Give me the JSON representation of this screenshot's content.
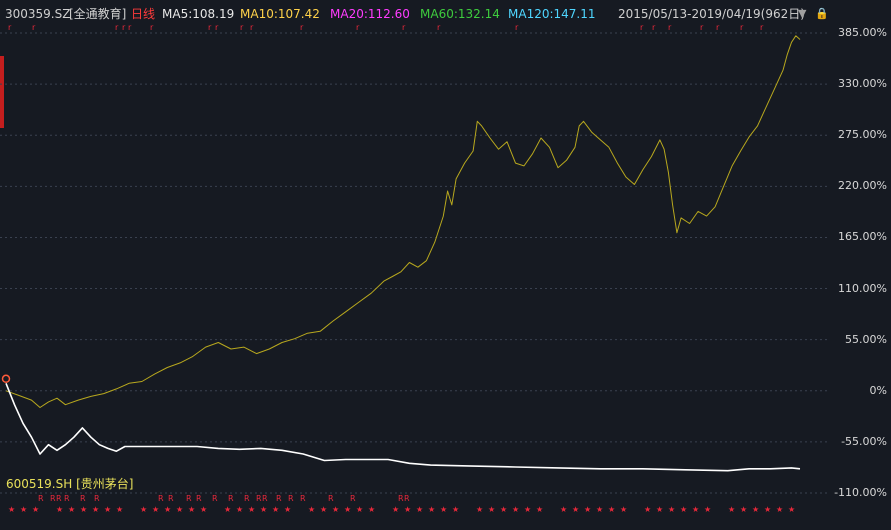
{
  "header": {
    "code": "300359.SZ",
    "name": "[全通教育]",
    "period": "日线",
    "ma5": "MA5:108.19",
    "ma10": "MA10:107.42",
    "ma20": "MA20:112.60",
    "ma60": "MA60:132.14",
    "ma120": "MA120:147.11",
    "range": "2015/05/13-2019/04/19(962日)",
    "dropdown_icon": "▼",
    "lock_icon": "lock-icon"
  },
  "colors": {
    "background": "#161a22",
    "series1": "#b8a81e",
    "series2": "#ffffff",
    "marker": "#e8283a",
    "grid": "#3a4150"
  },
  "chart_data": {
    "type": "line",
    "y_unit": "%",
    "ylim": [
      -110,
      385
    ],
    "y_ticks": [
      "385.00%",
      "330.00%",
      "275.00%",
      "220.00%",
      "165.00%",
      "110.00%",
      "55.00%",
      "0%",
      "-55.00%",
      "-110.00%"
    ],
    "series": [
      {
        "name": "300359.SZ [全通教育]",
        "points": [
          [
            0,
            0
          ],
          [
            3,
            -5
          ],
          [
            6,
            -10
          ],
          [
            8,
            -18
          ],
          [
            10,
            -12
          ],
          [
            12,
            -8
          ],
          [
            14,
            -15
          ],
          [
            17,
            -10
          ],
          [
            20,
            -6
          ],
          [
            23,
            -3
          ],
          [
            26,
            2
          ],
          [
            29,
            8
          ],
          [
            32,
            10
          ],
          [
            35,
            18
          ],
          [
            38,
            25
          ],
          [
            41,
            30
          ],
          [
            44,
            37
          ],
          [
            47,
            47
          ],
          [
            50,
            52
          ],
          [
            53,
            45
          ],
          [
            56,
            47
          ],
          [
            59,
            40
          ],
          [
            62,
            45
          ],
          [
            65,
            52
          ],
          [
            68,
            56
          ],
          [
            71,
            62
          ],
          [
            74,
            64
          ],
          [
            77,
            75
          ],
          [
            80,
            85
          ],
          [
            83,
            95
          ],
          [
            86,
            105
          ],
          [
            89,
            118
          ],
          [
            91,
            123
          ],
          [
            93,
            128
          ],
          [
            95,
            138
          ],
          [
            97,
            133
          ],
          [
            99,
            140
          ],
          [
            101,
            160
          ],
          [
            103,
            188
          ],
          [
            104,
            215
          ],
          [
            105,
            200
          ],
          [
            106,
            228
          ],
          [
            108,
            245
          ],
          [
            110,
            258
          ],
          [
            111,
            290
          ],
          [
            112,
            285
          ],
          [
            114,
            272
          ],
          [
            116,
            260
          ],
          [
            118,
            268
          ],
          [
            120,
            245
          ],
          [
            122,
            242
          ],
          [
            124,
            255
          ],
          [
            126,
            272
          ],
          [
            128,
            262
          ],
          [
            130,
            240
          ],
          [
            132,
            248
          ],
          [
            134,
            262
          ],
          [
            135,
            285
          ],
          [
            136,
            290
          ],
          [
            138,
            278
          ],
          [
            140,
            270
          ],
          [
            142,
            262
          ],
          [
            144,
            245
          ],
          [
            146,
            230
          ],
          [
            148,
            222
          ],
          [
            150,
            238
          ],
          [
            152,
            252
          ],
          [
            154,
            270
          ],
          [
            155,
            260
          ],
          [
            156,
            235
          ],
          [
            157,
            200
          ],
          [
            158,
            170
          ],
          [
            159,
            186
          ],
          [
            161,
            180
          ],
          [
            163,
            193
          ],
          [
            165,
            188
          ],
          [
            167,
            198
          ],
          [
            169,
            220
          ],
          [
            171,
            242
          ],
          [
            173,
            258
          ],
          [
            175,
            273
          ],
          [
            177,
            285
          ],
          [
            179,
            305
          ],
          [
            181,
            325
          ],
          [
            183,
            345
          ],
          [
            184,
            362
          ],
          [
            185,
            375
          ],
          [
            186,
            382
          ],
          [
            187,
            378
          ]
        ]
      },
      {
        "name": "600519.SH [贵州茅台]",
        "points": [
          [
            0,
            8
          ],
          [
            2,
            -15
          ],
          [
            4,
            -35
          ],
          [
            6,
            -50
          ],
          [
            8,
            -68
          ],
          [
            10,
            -58
          ],
          [
            12,
            -64
          ],
          [
            14,
            -58
          ],
          [
            16,
            -50
          ],
          [
            18,
            -40
          ],
          [
            20,
            -50
          ],
          [
            22,
            -58
          ],
          [
            24,
            -62
          ],
          [
            26,
            -65
          ],
          [
            28,
            -60
          ],
          [
            30,
            -60
          ],
          [
            35,
            -60
          ],
          [
            40,
            -60
          ],
          [
            45,
            -60
          ],
          [
            50,
            -62
          ],
          [
            55,
            -63
          ],
          [
            60,
            -62
          ],
          [
            65,
            -64
          ],
          [
            70,
            -68
          ],
          [
            75,
            -75
          ],
          [
            80,
            -74
          ],
          [
            85,
            -74
          ],
          [
            90,
            -74
          ],
          [
            95,
            -78
          ],
          [
            100,
            -80
          ],
          [
            110,
            -81
          ],
          [
            120,
            -82
          ],
          [
            130,
            -83
          ],
          [
            140,
            -84
          ],
          [
            150,
            -84
          ],
          [
            160,
            -85
          ],
          [
            170,
            -86
          ],
          [
            175,
            -84
          ],
          [
            180,
            -84
          ],
          [
            185,
            -83
          ],
          [
            187,
            -84
          ]
        ]
      }
    ]
  },
  "labels": {
    "series2_label": "600519.SH [贵州茅台]"
  }
}
